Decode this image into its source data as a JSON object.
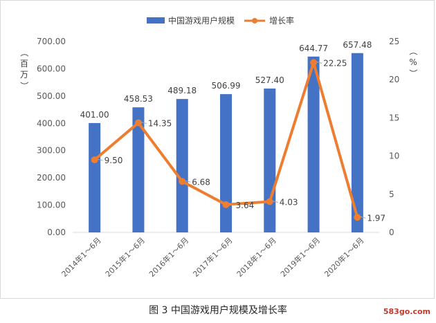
{
  "caption": "图 3 中国游戏用户规模及增长率",
  "watermark": "583go.com",
  "colors": {
    "bar": "#4472C4",
    "line": "#ED7D31",
    "grid": "#d9d9d9",
    "text": "#595959"
  },
  "chart_data": {
    "type": "bar",
    "categories": [
      "2014年1～6月",
      "2015年1～6月",
      "2016年1～6月",
      "2017年1～6月",
      "2018年1～6月",
      "2019年1～6月",
      "2020年1～6月"
    ],
    "series": [
      {
        "name": "中国游戏用户规模",
        "type": "bar",
        "axis": "left",
        "values": [
          401.0,
          458.53,
          489.18,
          506.99,
          527.4,
          644.77,
          657.48
        ],
        "labels": [
          "401.00",
          "458.53",
          "489.18",
          "506.99",
          "527.40",
          "644.77",
          "657.48"
        ]
      },
      {
        "name": "增长率",
        "type": "line",
        "axis": "right",
        "values": [
          9.5,
          14.35,
          6.68,
          3.64,
          4.03,
          22.25,
          1.97
        ],
        "labels": [
          "9.50",
          "14.35",
          "6.68",
          "3.64",
          "4.03",
          "22.25",
          "1.97"
        ]
      }
    ],
    "ylabel_left": "（百万）",
    "ylabel_right": "（%）",
    "ylim_left": [
      0,
      700
    ],
    "ylim_right": [
      0,
      25
    ],
    "yticks_left": [
      "0.00",
      "100.00",
      "200.00",
      "300.00",
      "400.00",
      "500.00",
      "600.00",
      "700.00"
    ],
    "yticks_right": [
      "0",
      "5",
      "10",
      "15",
      "20",
      "25"
    ],
    "legend": {
      "position": "top-center"
    },
    "grid": false
  }
}
